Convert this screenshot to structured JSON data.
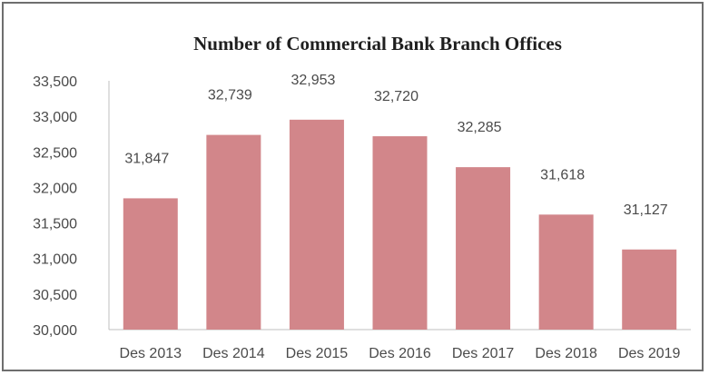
{
  "chart_data": {
    "type": "bar",
    "title": "Number of Commercial Bank Branch Offices",
    "xlabel": "",
    "ylabel": "",
    "categories": [
      "Des 2013",
      "Des 2014",
      "Des 2015",
      "Des 2016",
      "Des 2017",
      "Des 2018",
      "Des 2019"
    ],
    "values": [
      31847,
      32739,
      32953,
      32720,
      32285,
      31618,
      31127
    ],
    "value_labels": [
      "31,847",
      "32,739",
      "32,953",
      "32,720",
      "32,285",
      "31,618",
      "31,127"
    ],
    "ylim": [
      30000,
      33500
    ],
    "yticks": [
      30000,
      30500,
      31000,
      31500,
      32000,
      32500,
      33000,
      33500
    ],
    "ytick_labels": [
      "30,000",
      "30,500",
      "31,000",
      "31,500",
      "32,000",
      "32,500",
      "33,000",
      "33,500"
    ],
    "grid": false,
    "legend": "none",
    "bar_color": "#d2868a",
    "background_color": "#ffffff",
    "border_color": "#6e6e6e"
  }
}
